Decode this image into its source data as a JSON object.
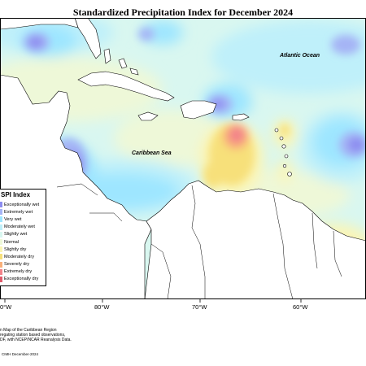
{
  "map": {
    "title": "Standardized Precipitation Index for December 2024",
    "labels": {
      "atlantic": "Atlantic Ocean",
      "caribbean": "Caribbean Sea"
    },
    "longitude_ticks": [
      "0°W",
      "80°W",
      "70°W",
      "60°W"
    ],
    "colors": {
      "exceptionally_wet": "#8c8cf0",
      "extremely_wet": "#a5b4f5",
      "very_wet": "#9ee6ff",
      "moderately_wet": "#bff0fa",
      "slightly_wet": "#d9f7f0",
      "normal": "#eef8d8",
      "slightly_dry": "#fbf5b5",
      "moderately_dry": "#f7e07a",
      "severely_dry": "#f9b07a",
      "extremely_dry": "#f3838a",
      "land": "#ffffff"
    }
  },
  "legend": {
    "title": "SPI Index",
    "items": [
      {
        "label": "Exceptionally wet",
        "color": "#8c8cf0"
      },
      {
        "label": "Extremely wet",
        "color": "#a5b4f5"
      },
      {
        "label": "Very wet",
        "color": "#9ee6ff"
      },
      {
        "label": "Moderately wet",
        "color": "#bff0fa"
      },
      {
        "label": "Slightly wet",
        "color": "#d9f7f0"
      },
      {
        "label": "Normal",
        "color": "#eef8d8"
      },
      {
        "label": "Slightly dry",
        "color": "#fbf5b5"
      },
      {
        "label": "Moderately dry",
        "color": "#f7e07a"
      },
      {
        "label": "Severely dry",
        "color": "#f9b07a"
      },
      {
        "label": "Extremely dry",
        "color": "#f3838a"
      },
      {
        "label": "Exceptionally dry",
        "color": "#e05a6a"
      }
    ]
  },
  "notes": {
    "line1": "n Map of the Caribbean Region",
    "line2": "regating station based observations,",
    "line3": "DF, with NCEP/NCAR Reanalysis Data.",
    "credit": "CIMH December-2024"
  }
}
